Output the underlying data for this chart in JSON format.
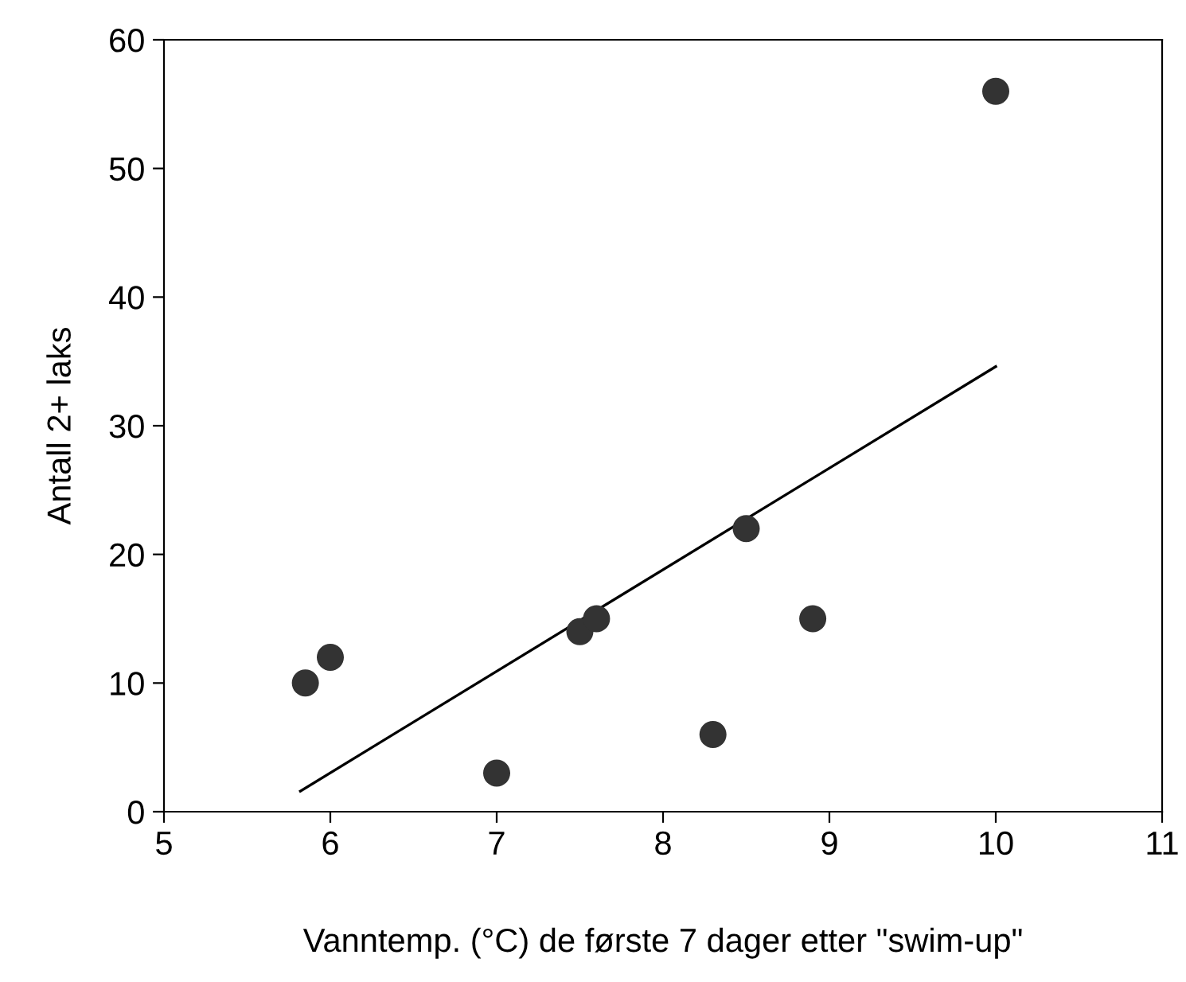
{
  "chart_data": {
    "type": "scatter",
    "xlabel": "Vanntemp. (°C) de første 7 dager etter \"swim-up\"",
    "ylabel": "Antall 2+ laks",
    "xlim": [
      5,
      11
    ],
    "xticks": [
      5,
      6,
      7,
      8,
      9,
      10,
      11
    ],
    "ylim": [
      0,
      60
    ],
    "yticks": [
      0,
      10,
      20,
      30,
      40,
      50,
      60
    ],
    "grid": false,
    "legend": false,
    "series": [
      {
        "marker": "circle",
        "color": "#333333",
        "x": [
          5.85,
          6.0,
          7.0,
          7.5,
          7.6,
          8.3,
          8.5,
          8.9,
          10.0
        ],
        "values": [
          10,
          12,
          3,
          14,
          15,
          6,
          22,
          15,
          56
        ]
      },
      {
        "type": "line",
        "marker": "none",
        "line_style": "solid",
        "color": "#000000",
        "x": [
          5.82,
          10.0
        ],
        "values": [
          1.6,
          34.6
        ]
      }
    ]
  }
}
